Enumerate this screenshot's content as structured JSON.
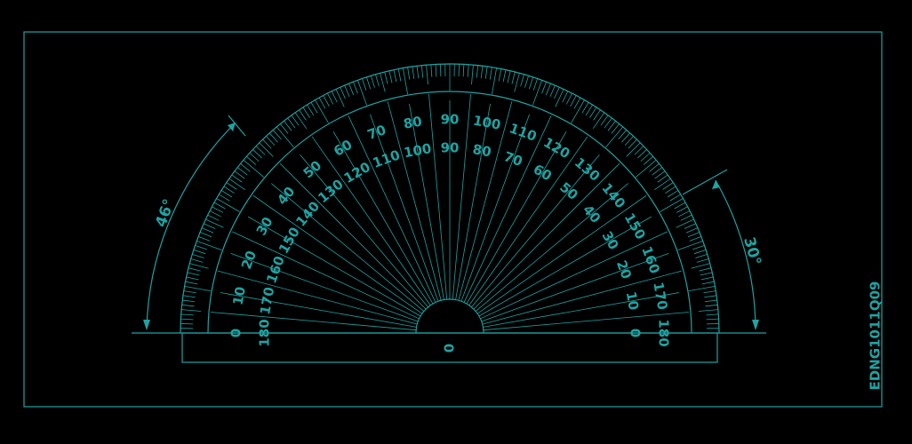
{
  "drawing": {
    "background": "#000000",
    "stroke_color": "#1fa3a3",
    "code": "EDNG1011Q09",
    "center_label": "0",
    "outer_scale": {
      "labels": [
        "0",
        "10",
        "20",
        "30",
        "40",
        "50",
        "60",
        "70",
        "80",
        "90",
        "100",
        "110",
        "120",
        "130",
        "140",
        "150",
        "160",
        "170",
        "180"
      ]
    },
    "inner_scale": {
      "labels": [
        "180",
        "170",
        "160",
        "150",
        "140",
        "130",
        "120",
        "110",
        "100",
        "90",
        "80",
        "70",
        "60",
        "50",
        "40",
        "30",
        "20",
        "10",
        "0"
      ]
    },
    "dimensions": [
      {
        "label": "46°"
      },
      {
        "label": "30°"
      }
    ]
  }
}
